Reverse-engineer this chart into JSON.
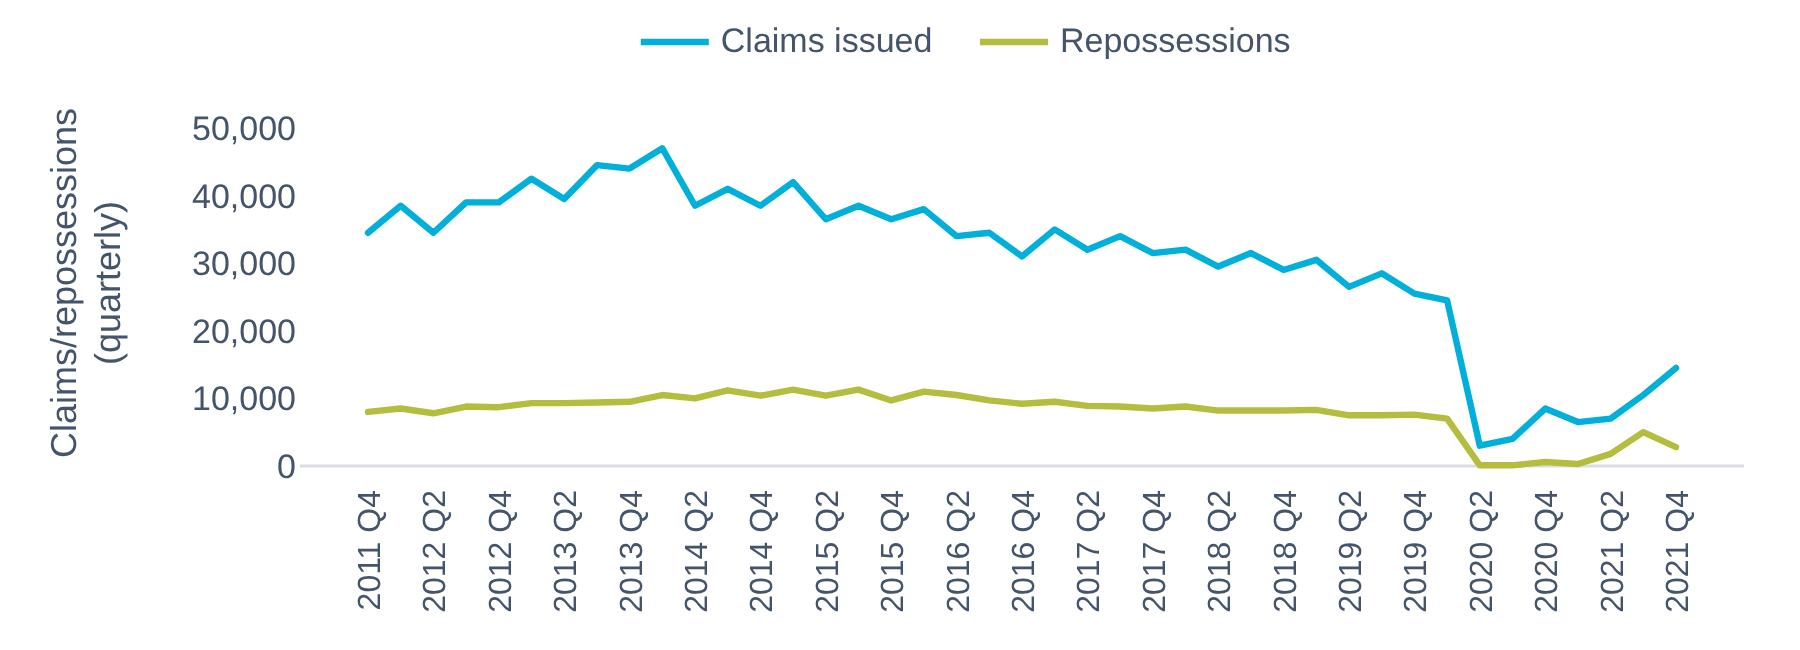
{
  "chart_data": {
    "type": "line",
    "ylabel": "Claims/repossessions\n(quarterly)",
    "categories": [
      "2011 Q4",
      null,
      "2012 Q2",
      null,
      "2012 Q4",
      null,
      "2013 Q2",
      null,
      "2013 Q4",
      null,
      "2014 Q2",
      null,
      "2014 Q4",
      null,
      "2015 Q2",
      null,
      "2015 Q4",
      null,
      "2016 Q2",
      null,
      "2016 Q4",
      null,
      "2017 Q2",
      null,
      "2017 Q4",
      null,
      "2018 Q2",
      null,
      "2018 Q4",
      null,
      "2019 Q2",
      null,
      "2019 Q4",
      null,
      "2020 Q2",
      null,
      "2020 Q4",
      null,
      "2021 Q2",
      null,
      "2021 Q4"
    ],
    "series": [
      {
        "name": "Claims issued",
        "color": "#00b0da",
        "values": [
          34500,
          38500,
          34500,
          39000,
          39000,
          42500,
          39500,
          44500,
          44000,
          47000,
          38500,
          41000,
          38500,
          42000,
          36500,
          38500,
          36500,
          38000,
          34000,
          34500,
          31000,
          35000,
          32000,
          34000,
          31500,
          32000,
          29500,
          31500,
          29000,
          30500,
          26500,
          28500,
          25500,
          24500,
          3000,
          4000,
          8500,
          6500,
          7000,
          10500,
          14500
        ]
      },
      {
        "name": "Repossessions",
        "color": "#b5bd3f",
        "values": [
          8000,
          8500,
          7800,
          8800,
          8700,
          9300,
          9300,
          9400,
          9500,
          10500,
          10000,
          11200,
          10400,
          11300,
          10400,
          11300,
          9700,
          11000,
          10500,
          9700,
          9200,
          9500,
          8900,
          8800,
          8500,
          8800,
          8200,
          8200,
          8200,
          8300,
          7500,
          7500,
          7600,
          7000,
          100,
          100,
          600,
          300,
          1800,
          5000,
          2800
        ]
      }
    ],
    "ylim": [
      0,
      50000
    ],
    "yticks": [
      {
        "value": 0,
        "label": "0"
      },
      {
        "value": 10000,
        "label": "10,000"
      },
      {
        "value": 20000,
        "label": "20,000"
      },
      {
        "value": 30000,
        "label": "30,000"
      },
      {
        "value": 40000,
        "label": "40,000"
      },
      {
        "value": 50000,
        "label": "50,000"
      }
    ],
    "grid": false,
    "legend": "top",
    "line_style": "solid",
    "marker": "none"
  }
}
